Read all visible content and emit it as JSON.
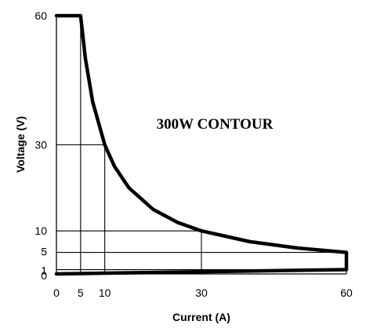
{
  "chart_data": {
    "type": "line",
    "title": "",
    "xlabel": "Current (A)",
    "ylabel": "Voltage (V)",
    "xlim": [
      0,
      60
    ],
    "ylim": [
      0,
      60
    ],
    "x_ticks": [
      0,
      5,
      10,
      30,
      60
    ],
    "y_ticks": [
      0,
      1,
      5,
      10,
      30,
      60
    ],
    "annotation": "300W CONTOUR",
    "grid": "reference lines at operating points",
    "series": [
      {
        "values": [
          {
            "x": 0,
            "y": 60
          },
          {
            "x": 5,
            "y": 60
          },
          {
            "x": 6,
            "y": 50
          },
          {
            "x": 7.5,
            "y": 40
          },
          {
            "x": 10,
            "y": 30
          },
          {
            "x": 12,
            "y": 25
          },
          {
            "x": 15,
            "y": 20
          },
          {
            "x": 20,
            "y": 15
          },
          {
            "x": 25,
            "y": 12
          },
          {
            "x": 30,
            "y": 10
          },
          {
            "x": 40,
            "y": 7.5
          },
          {
            "x": 50,
            "y": 6
          },
          {
            "x": 60,
            "y": 5
          },
          {
            "x": 60,
            "y": 1
          },
          {
            "x": 0,
            "y": 0
          }
        ]
      }
    ],
    "reference_lines": [
      {
        "x": 5,
        "y": 60
      },
      {
        "x": 10,
        "y": 30
      },
      {
        "x": 30,
        "y": 10
      },
      {
        "x": 60,
        "y": 5
      },
      {
        "x": 60,
        "y": 1
      }
    ],
    "colors": {
      "curve": "#000000",
      "reference": "#000000",
      "background": "#ffffff"
    }
  }
}
